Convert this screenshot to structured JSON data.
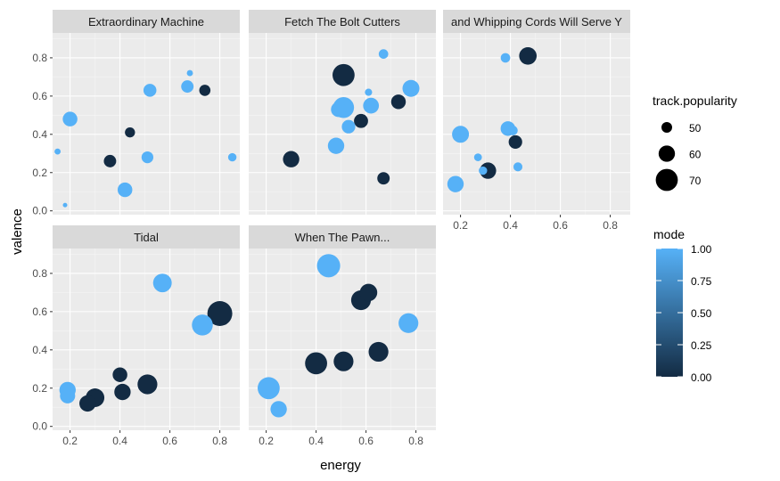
{
  "chart_data": {
    "type": "scatter",
    "facet_type": "wrap",
    "xlabel": "energy",
    "ylabel": "valence",
    "xlim": [
      0.13,
      0.88
    ],
    "ylim": [
      -0.02,
      0.93
    ],
    "x_ticks": [
      0.2,
      0.4,
      0.6,
      0.8
    ],
    "y_ticks": [
      0.0,
      0.2,
      0.4,
      0.6,
      0.8
    ],
    "x_tick_labels": [
      "0.2",
      "0.4",
      "0.6",
      "0.8"
    ],
    "y_tick_labels": [
      "0.0",
      "0.2",
      "0.4",
      "0.6",
      "0.8"
    ],
    "grid": true,
    "legend_position": "right",
    "size_legend": {
      "title": "track.popularity",
      "values": [
        50,
        60,
        70
      ],
      "labels": [
        "50",
        "60",
        "70"
      ]
    },
    "color_legend": {
      "title": "mode",
      "low_color": "#132B43",
      "high_color": "#56B1F7",
      "values": [
        0,
        0.25,
        0.5,
        0.75,
        1.0
      ],
      "labels": [
        "0.00",
        "0.25",
        "0.50",
        "0.75",
        "1.00"
      ]
    },
    "panels": [
      {
        "title": "Extraordinary Machine",
        "points": [
          {
            "energy": 0.15,
            "valence": 0.31,
            "popularity": 42,
            "mode": 1
          },
          {
            "energy": 0.18,
            "valence": 0.03,
            "popularity": 38,
            "mode": 1
          },
          {
            "energy": 0.2,
            "valence": 0.48,
            "popularity": 57,
            "mode": 1
          },
          {
            "energy": 0.36,
            "valence": 0.26,
            "popularity": 53,
            "mode": 0
          },
          {
            "energy": 0.42,
            "valence": 0.11,
            "popularity": 57,
            "mode": 1
          },
          {
            "energy": 0.44,
            "valence": 0.41,
            "popularity": 49,
            "mode": 0
          },
          {
            "energy": 0.51,
            "valence": 0.28,
            "popularity": 52,
            "mode": 1
          },
          {
            "energy": 0.52,
            "valence": 0.63,
            "popularity": 54,
            "mode": 1
          },
          {
            "energy": 0.67,
            "valence": 0.65,
            "popularity": 53,
            "mode": 1
          },
          {
            "energy": 0.68,
            "valence": 0.72,
            "popularity": 42,
            "mode": 1
          },
          {
            "energy": 0.74,
            "valence": 0.63,
            "popularity": 51,
            "mode": 0
          },
          {
            "energy": 0.85,
            "valence": 0.28,
            "popularity": 46,
            "mode": 1
          }
        ]
      },
      {
        "title": "Fetch The Bolt Cutters",
        "points": [
          {
            "energy": 0.3,
            "valence": 0.27,
            "popularity": 60,
            "mode": 0
          },
          {
            "energy": 0.48,
            "valence": 0.34,
            "popularity": 60,
            "mode": 1
          },
          {
            "energy": 0.49,
            "valence": 0.53,
            "popularity": 58,
            "mode": 1
          },
          {
            "energy": 0.51,
            "valence": 0.54,
            "popularity": 68,
            "mode": 1
          },
          {
            "energy": 0.51,
            "valence": 0.71,
            "popularity": 70,
            "mode": 0
          },
          {
            "energy": 0.53,
            "valence": 0.44,
            "popularity": 55,
            "mode": 1
          },
          {
            "energy": 0.58,
            "valence": 0.47,
            "popularity": 56,
            "mode": 0
          },
          {
            "energy": 0.61,
            "valence": 0.62,
            "popularity": 44,
            "mode": 1
          },
          {
            "energy": 0.62,
            "valence": 0.55,
            "popularity": 59,
            "mode": 1
          },
          {
            "energy": 0.67,
            "valence": 0.82,
            "popularity": 48,
            "mode": 1
          },
          {
            "energy": 0.67,
            "valence": 0.17,
            "popularity": 53,
            "mode": 0
          },
          {
            "energy": 0.73,
            "valence": 0.57,
            "popularity": 57,
            "mode": 0
          },
          {
            "energy": 0.78,
            "valence": 0.64,
            "popularity": 61,
            "mode": 1
          }
        ]
      },
      {
        "title": "and Whipping Cords Will Serve Y",
        "points": [
          {
            "energy": 0.18,
            "valence": 0.14,
            "popularity": 60,
            "mode": 1
          },
          {
            "energy": 0.2,
            "valence": 0.4,
            "popularity": 61,
            "mode": 1
          },
          {
            "energy": 0.27,
            "valence": 0.28,
            "popularity": 45,
            "mode": 1
          },
          {
            "energy": 0.29,
            "valence": 0.21,
            "popularity": 46,
            "mode": 1
          },
          {
            "energy": 0.31,
            "valence": 0.21,
            "popularity": 60,
            "mode": 0
          },
          {
            "energy": 0.38,
            "valence": 0.8,
            "popularity": 48,
            "mode": 1
          },
          {
            "energy": 0.39,
            "valence": 0.43,
            "popularity": 57,
            "mode": 1
          },
          {
            "energy": 0.41,
            "valence": 0.42,
            "popularity": 48,
            "mode": 1
          },
          {
            "energy": 0.42,
            "valence": 0.36,
            "popularity": 55,
            "mode": 0
          },
          {
            "energy": 0.43,
            "valence": 0.23,
            "popularity": 47,
            "mode": 1
          },
          {
            "energy": 0.47,
            "valence": 0.81,
            "popularity": 62,
            "mode": 0
          }
        ]
      },
      {
        "title": "Tidal",
        "points": [
          {
            "energy": 0.19,
            "valence": 0.19,
            "popularity": 60,
            "mode": 1
          },
          {
            "energy": 0.19,
            "valence": 0.16,
            "popularity": 58,
            "mode": 1
          },
          {
            "energy": 0.27,
            "valence": 0.12,
            "popularity": 60,
            "mode": 0
          },
          {
            "energy": 0.3,
            "valence": 0.15,
            "popularity": 64,
            "mode": 0
          },
          {
            "energy": 0.4,
            "valence": 0.27,
            "popularity": 57,
            "mode": 0
          },
          {
            "energy": 0.41,
            "valence": 0.18,
            "popularity": 60,
            "mode": 0
          },
          {
            "energy": 0.51,
            "valence": 0.22,
            "popularity": 66,
            "mode": 0
          },
          {
            "energy": 0.57,
            "valence": 0.75,
            "popularity": 64,
            "mode": 1
          },
          {
            "energy": 0.73,
            "valence": 0.53,
            "popularity": 68,
            "mode": 1
          },
          {
            "energy": 0.8,
            "valence": 0.59,
            "popularity": 75,
            "mode": 0
          }
        ]
      },
      {
        "title": "When The Pawn...",
        "points": [
          {
            "energy": 0.21,
            "valence": 0.2,
            "popularity": 70,
            "mode": 1
          },
          {
            "energy": 0.25,
            "valence": 0.09,
            "popularity": 60,
            "mode": 1
          },
          {
            "energy": 0.4,
            "valence": 0.33,
            "popularity": 70,
            "mode": 0
          },
          {
            "energy": 0.45,
            "valence": 0.84,
            "popularity": 72,
            "mode": 1
          },
          {
            "energy": 0.51,
            "valence": 0.34,
            "popularity": 66,
            "mode": 0
          },
          {
            "energy": 0.58,
            "valence": 0.66,
            "popularity": 66,
            "mode": 0
          },
          {
            "energy": 0.61,
            "valence": 0.7,
            "popularity": 62,
            "mode": 0
          },
          {
            "energy": 0.65,
            "valence": 0.39,
            "popularity": 66,
            "mode": 0
          },
          {
            "energy": 0.77,
            "valence": 0.54,
            "popularity": 66,
            "mode": 1
          }
        ]
      }
    ]
  }
}
